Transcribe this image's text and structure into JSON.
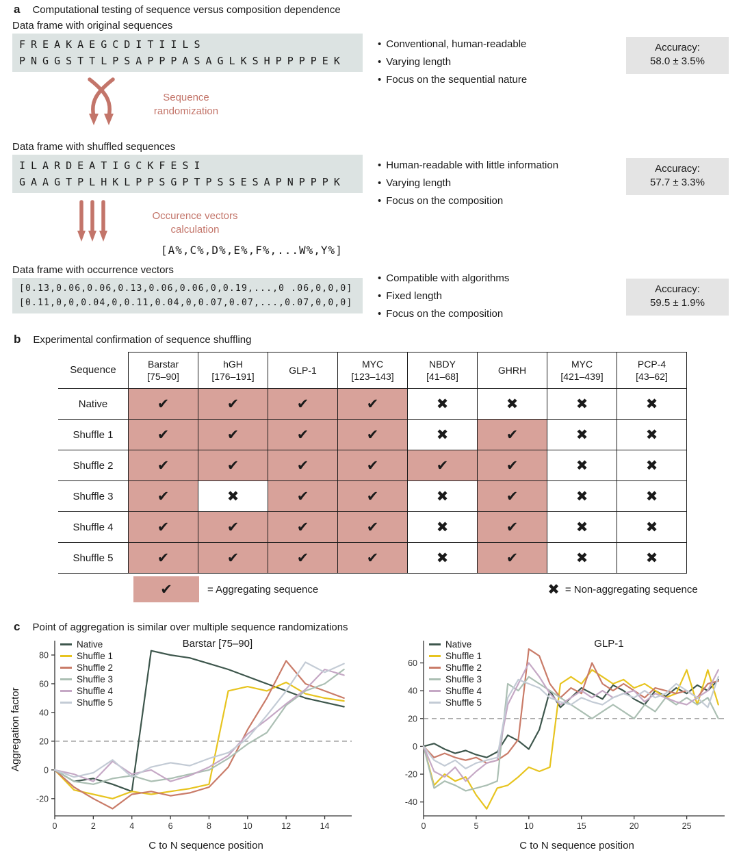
{
  "colors": {
    "accent": "#c3756a",
    "seq_box_bg": "#dce3e2",
    "accuracy_box_bg": "#e4e4e4",
    "agg_cell_bg": "#d8a29a",
    "axis": "#333333",
    "threshold": "#999999"
  },
  "panel_a": {
    "label": "a",
    "title": "Computational testing of sequence versus composition dependence",
    "arrow1_label": "Sequence\nrandomization",
    "arrow2_label": "Occurence vectors\ncalculation",
    "occurrence_formula": "[A%,C%,D%,E%,F%,...W%,Y%]",
    "stages": [
      {
        "caption": "Data frame with original sequences",
        "lines": [
          "FREAKAEGCDITIILS",
          "PNGGSTTLPSAPPPASAGLKSHPPPPEK"
        ],
        "bullets": [
          "Conventional, human-readable",
          "Varying length",
          "Focus on the sequential nature"
        ],
        "accuracy_label": "Accuracy:",
        "accuracy_value": "58.0 ± 3.5%"
      },
      {
        "caption": "Data frame with shuffled sequences",
        "lines": [
          "ILARDEATIGCKFESI",
          "GAAGTPLHKLPPSGPTPSSESAPNPPPK"
        ],
        "bullets": [
          "Human-readable with little information",
          "Varying length",
          "Focus on the composition"
        ],
        "accuracy_label": "Accuracy:",
        "accuracy_value": "57.7 ± 3.3%"
      },
      {
        "caption": "Data frame with occurrence vectors",
        "lines": [
          "[0.13,0.06,0.06,0.13,0.06,0.06,0,0.19,...,0 .06,0,0,0]",
          "[0.11,0,0,0.04,0,0.11,0.04,0,0.07,0.07,...,0.07,0,0,0]"
        ],
        "bullets": [
          "Compatible with algorithms",
          "Fixed length",
          "Focus on the composition"
        ],
        "accuracy_label": "Accuracy:",
        "accuracy_value": "59.5 ± 1.9%"
      }
    ]
  },
  "panel_b": {
    "label": "b",
    "title": "Experimental confirmation of sequence shuffling",
    "corner_header": "Sequence",
    "columns": [
      "Barstar\n[75–90]",
      "hGH\n[176–191]",
      "GLP-1",
      "MYC\n[123–143]",
      "NBDY\n[41–68]",
      "GHRH",
      "MYC\n[421–439]",
      "PCP-4\n[43–62]"
    ],
    "rows": [
      {
        "label": "Native",
        "cells": [
          1,
          1,
          1,
          1,
          0,
          0,
          0,
          0
        ]
      },
      {
        "label": "Shuffle 1",
        "cells": [
          1,
          1,
          1,
          1,
          0,
          1,
          0,
          0
        ]
      },
      {
        "label": "Shuffle 2",
        "cells": [
          1,
          1,
          1,
          1,
          1,
          1,
          0,
          0
        ]
      },
      {
        "label": "Shuffle 3",
        "cells": [
          1,
          0,
          1,
          1,
          0,
          1,
          0,
          0
        ]
      },
      {
        "label": "Shuffle 4",
        "cells": [
          1,
          1,
          1,
          1,
          0,
          1,
          0,
          0
        ]
      },
      {
        "label": "Shuffle 5",
        "cells": [
          1,
          1,
          1,
          1,
          0,
          1,
          0,
          0
        ]
      }
    ],
    "check_glyph": "✔",
    "cross_glyph": "✖",
    "legend_agg": "= Aggregating sequence",
    "legend_non": "= Non-aggregating sequence"
  },
  "panel_c": {
    "label": "c",
    "title": "Point of aggregation is similar over multiple sequence randomizations",
    "ylabel": "Aggregation factor"
  },
  "chart_data": [
    {
      "type": "line",
      "title": "Barstar [75–90]",
      "xlabel": "C to N sequence position",
      "ylabel": "Aggregation factor",
      "xlim": [
        0,
        15.4
      ],
      "ylim": [
        -32,
        90
      ],
      "xticks": [
        0,
        2,
        4,
        6,
        8,
        10,
        12,
        14
      ],
      "yticks": [
        -20,
        0,
        20,
        40,
        60,
        80
      ],
      "threshold": 20,
      "grid": false,
      "legend_position": "upper-left",
      "series": [
        {
          "name": "Native",
          "color": "#3d564c",
          "values": [
            0,
            -8,
            -6,
            -10,
            -15,
            83,
            80,
            78,
            74,
            70,
            65,
            60,
            55,
            50,
            47,
            44
          ]
        },
        {
          "name": "Shuffle 1",
          "color": "#e7c41f",
          "values": [
            0,
            -14,
            -17,
            -20,
            -15,
            -17,
            -15,
            -13,
            -10,
            55,
            58,
            55,
            61,
            53,
            50,
            48
          ]
        },
        {
          "name": "Shuffle 2",
          "color": "#c97b68",
          "values": [
            0,
            -12,
            -20,
            -27,
            -17,
            -15,
            -18,
            -16,
            -12,
            2,
            28,
            50,
            76,
            60,
            55,
            50
          ]
        },
        {
          "name": "Shuffle 3",
          "color": "#abbfb3",
          "values": [
            0,
            -8,
            -10,
            -6,
            -4,
            -8,
            -6,
            -3,
            0,
            8,
            18,
            26,
            45,
            55,
            60,
            70
          ]
        },
        {
          "name": "Shuffle 4",
          "color": "#c5a8c5",
          "values": [
            0,
            -3,
            -8,
            6,
            -3,
            0,
            -8,
            -4,
            2,
            10,
            25,
            35,
            46,
            56,
            70,
            66
          ]
        },
        {
          "name": "Shuffle 5",
          "color": "#c3cbd5",
          "values": [
            0,
            -5,
            -2,
            7,
            -5,
            2,
            5,
            3,
            8,
            12,
            22,
            38,
            55,
            75,
            68,
            74
          ]
        }
      ]
    },
    {
      "type": "line",
      "title": "GLP-1",
      "xlabel": "C to N sequence position",
      "ylabel": "",
      "xlim": [
        0,
        28.6
      ],
      "ylim": [
        -50,
        76
      ],
      "xticks": [
        0,
        5,
        10,
        15,
        20,
        25
      ],
      "yticks": [
        -40,
        -20,
        0,
        20,
        40,
        60
      ],
      "threshold": 20,
      "grid": false,
      "legend_position": "upper-left",
      "series": [
        {
          "name": "Native",
          "color": "#3d564c",
          "values": [
            0,
            2,
            -2,
            -5,
            -3,
            -6,
            -8,
            -4,
            8,
            4,
            -2,
            12,
            40,
            28,
            35,
            42,
            38,
            34,
            44,
            40,
            34,
            30,
            40,
            36,
            42,
            38,
            44,
            40,
            48
          ]
        },
        {
          "name": "Shuffle 1",
          "color": "#e7c41f",
          "values": [
            0,
            -28,
            -20,
            -25,
            -22,
            -35,
            -45,
            -30,
            -28,
            -22,
            -15,
            -18,
            -15,
            45,
            50,
            45,
            55,
            50,
            45,
            48,
            42,
            45,
            40,
            35,
            38,
            55,
            30,
            55,
            30
          ]
        },
        {
          "name": "Shuffle 2",
          "color": "#c97b68",
          "values": [
            0,
            -8,
            -5,
            -8,
            -10,
            -8,
            -12,
            -10,
            -5,
            5,
            70,
            65,
            45,
            35,
            42,
            38,
            60,
            45,
            40,
            45,
            40,
            35,
            42,
            40,
            38,
            40,
            35,
            45,
            47
          ]
        },
        {
          "name": "Shuffle 3",
          "color": "#abbfb3",
          "values": [
            0,
            -30,
            -25,
            -28,
            -32,
            -30,
            -28,
            -25,
            45,
            40,
            50,
            45,
            40,
            35,
            30,
            25,
            20,
            25,
            30,
            25,
            20,
            30,
            25,
            35,
            30,
            35,
            30,
            35,
            20
          ]
        },
        {
          "name": "Shuffle 4",
          "color": "#c5a8c5",
          "values": [
            0,
            -18,
            -22,
            -15,
            -25,
            -18,
            -12,
            -10,
            30,
            45,
            60,
            50,
            38,
            30,
            35,
            40,
            35,
            40,
            35,
            38,
            40,
            32,
            38,
            35,
            32,
            30,
            35,
            40,
            55
          ]
        },
        {
          "name": "Shuffle 5",
          "color": "#c3cbd5",
          "values": [
            0,
            -10,
            -14,
            -10,
            -16,
            -12,
            -10,
            -8,
            35,
            48,
            45,
            42,
            35,
            32,
            30,
            35,
            32,
            30,
            35,
            38,
            35,
            40,
            35,
            38,
            45,
            40,
            35,
            28,
            50
          ]
        }
      ]
    }
  ]
}
